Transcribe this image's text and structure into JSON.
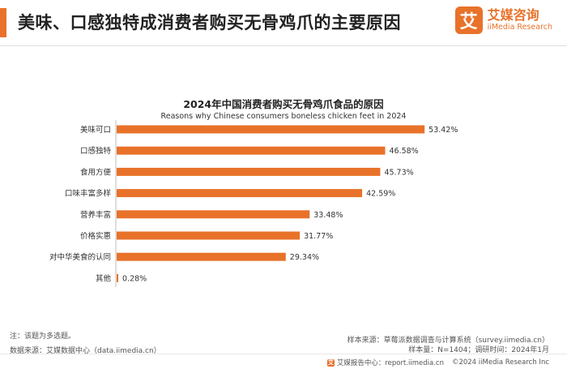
{
  "header": {
    "title": "美味、口感独特成消费者购买无骨鸡爪的主要原因",
    "logo_mark": "艾",
    "logo_cn": "艾媒咨询",
    "logo_en": "iiMedia Research"
  },
  "chart_data": {
    "type": "bar",
    "orientation": "horizontal",
    "title": "2024年中国消费者购买无骨鸡爪食品的原因",
    "subtitle": "Reasons why Chinese consumers boneless chicken feet in 2024",
    "categories": [
      "美味可口",
      "口感独特",
      "食用方便",
      "口味丰富多样",
      "营养丰富",
      "价格实惠",
      "对中华美食的认同",
      "其他"
    ],
    "values": [
      53.42,
      46.58,
      45.73,
      42.59,
      33.48,
      31.77,
      29.34,
      0.28
    ],
    "value_labels": [
      "53.42%",
      "46.58%",
      "45.73%",
      "42.59%",
      "33.48%",
      "31.77%",
      "29.34%",
      "0.28%"
    ],
    "xlim": [
      0,
      60
    ],
    "grid": false,
    "bar_color": "#e8722a"
  },
  "footer": {
    "note": "注：该题为多选题。",
    "source": "数据来源：艾媒数据中心（data.iimedia.cn）",
    "sample_source": "样本来源：草莓派数据调查与计算系统（survey.iimedia.cn）",
    "sample_info": "样本量：N=1404；调研时间：2024年1月",
    "report_center": "艾媒报告中心：report.iimedia.cn",
    "copyright": "©2024  iiMedia Research  Inc"
  }
}
